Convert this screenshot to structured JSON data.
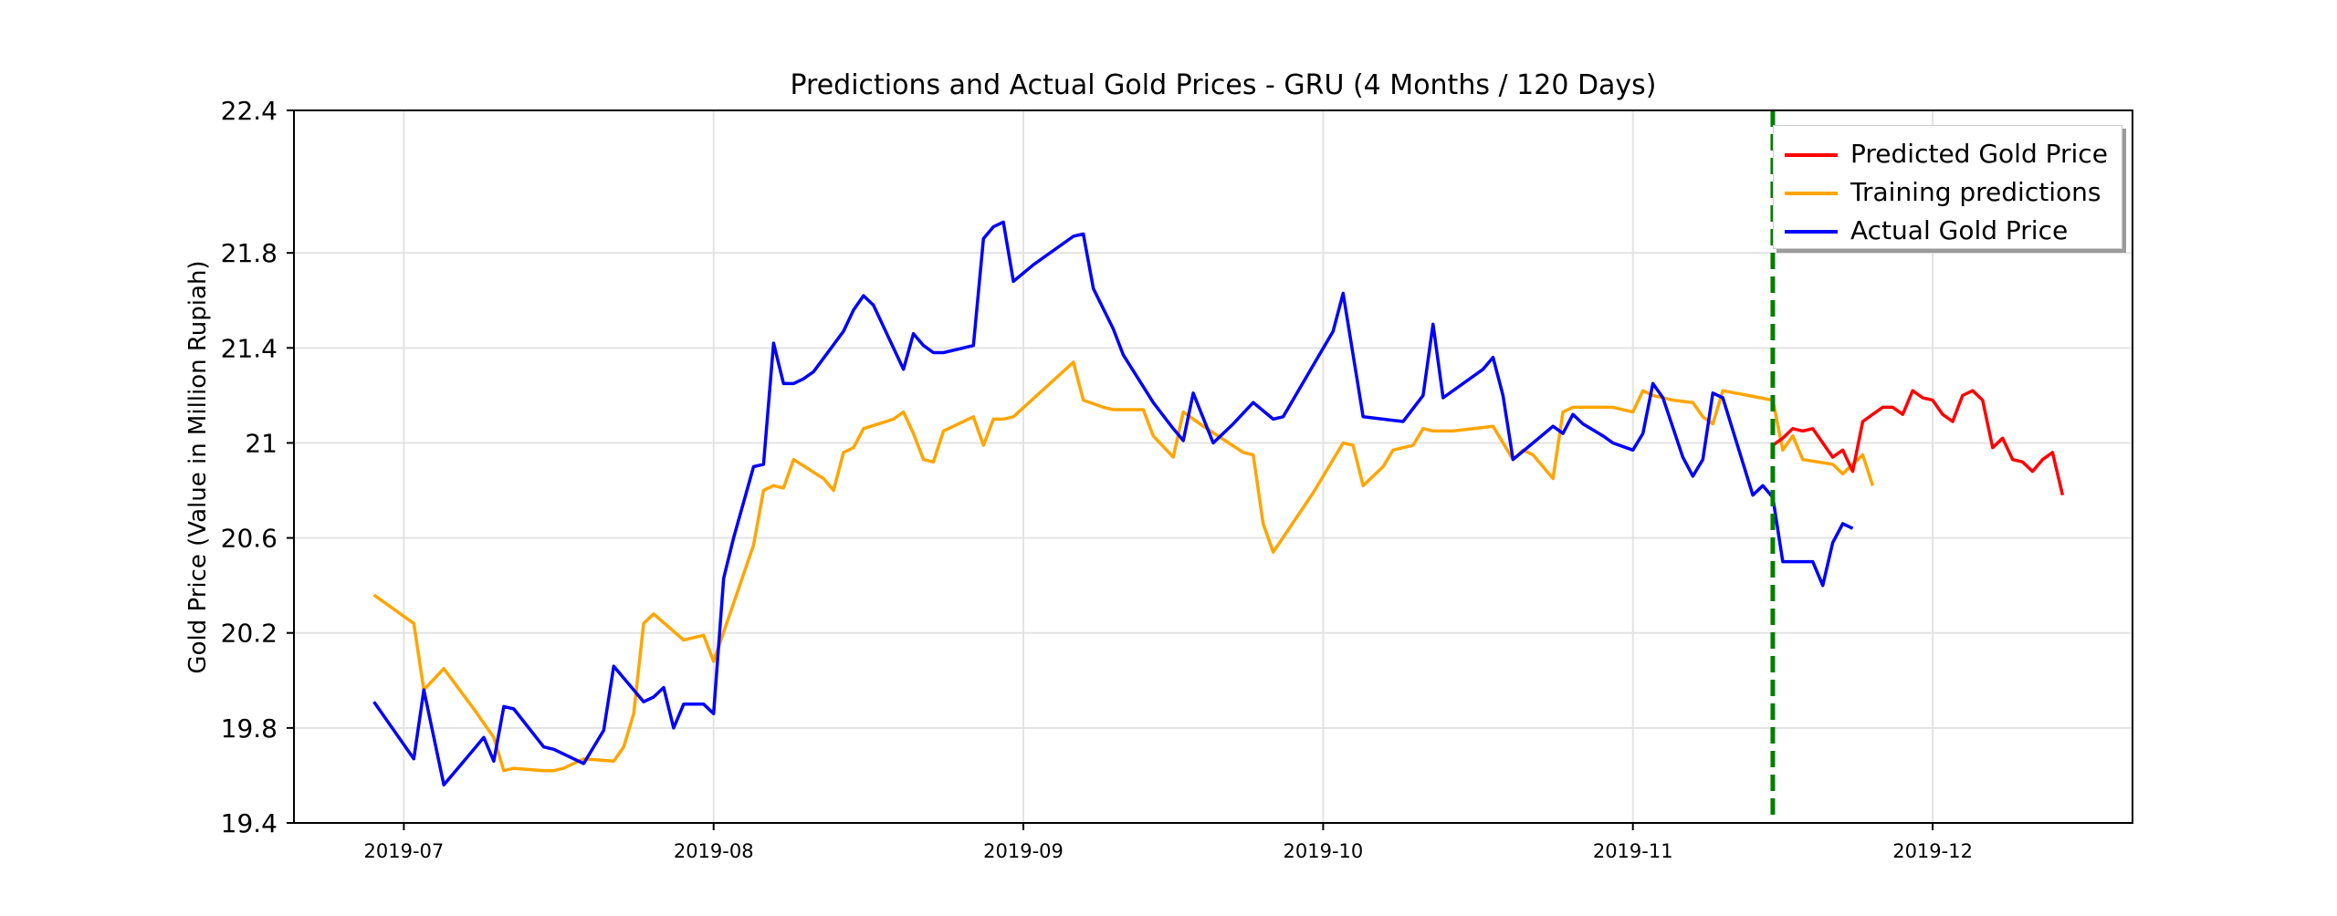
{
  "chart_data": {
    "type": "line",
    "title": "Predictions and Actual Gold Prices - GRU (4 Months / 120 Days)",
    "xlabel": "",
    "ylabel": "Gold Price (Value in Million Rupiah)",
    "ylim": [
      19.4,
      22.4
    ],
    "xlim": [
      "2019-06-20",
      "2019-12-21"
    ],
    "grid": true,
    "legend_position": "top-right",
    "x_ticks": [
      "2019-07",
      "2019-08",
      "2019-09",
      "2019-10",
      "2019-11",
      "2019-12"
    ],
    "x_tick_dates": [
      "2019-07-01",
      "2019-08-01",
      "2019-09-01",
      "2019-10-01",
      "2019-11-01",
      "2019-12-01"
    ],
    "y_ticks": [
      19.4,
      19.8,
      20.2,
      20.6,
      21,
      21.4,
      21.8,
      22.4
    ],
    "y_tick_labels": [
      "19.4",
      "19.8",
      "20.2",
      "20.6",
      "21",
      "21.4",
      "21.8",
      "22.4"
    ],
    "vertical_line": {
      "x": "2019-11-15",
      "color": "#008000",
      "style": "dashed"
    },
    "series": [
      {
        "name": "Predicted Gold Price",
        "color": "#ff0000",
        "points": [
          [
            "2019-11-15",
            20.99
          ],
          [
            "2019-11-16",
            21.02
          ],
          [
            "2019-11-17",
            21.06
          ],
          [
            "2019-11-18",
            21.05
          ],
          [
            "2019-11-19",
            21.06
          ],
          [
            "2019-11-20",
            21.0
          ],
          [
            "2019-11-21",
            20.94
          ],
          [
            "2019-11-22",
            20.97
          ],
          [
            "2019-11-23",
            20.88
          ],
          [
            "2019-11-24",
            21.09
          ],
          [
            "2019-11-25",
            21.12
          ],
          [
            "2019-11-26",
            21.15
          ],
          [
            "2019-11-27",
            21.15
          ],
          [
            "2019-11-28",
            21.12
          ],
          [
            "2019-11-29",
            21.22
          ],
          [
            "2019-11-30",
            21.19
          ],
          [
            "2019-12-01",
            21.18
          ],
          [
            "2019-12-02",
            21.12
          ],
          [
            "2019-12-03",
            21.09
          ],
          [
            "2019-12-04",
            21.2
          ],
          [
            "2019-12-05",
            21.22
          ],
          [
            "2019-12-06",
            21.18
          ],
          [
            "2019-12-07",
            20.98
          ],
          [
            "2019-12-08",
            21.02
          ],
          [
            "2019-12-09",
            20.93
          ],
          [
            "2019-12-10",
            20.92
          ],
          [
            "2019-12-11",
            20.88
          ],
          [
            "2019-12-12",
            20.93
          ],
          [
            "2019-12-13",
            20.96
          ],
          [
            "2019-12-14",
            20.78
          ]
        ]
      },
      {
        "name": "Training predictions",
        "color": "#ffa500",
        "points": [
          [
            "2019-06-28",
            20.36
          ],
          [
            "2019-07-02",
            20.24
          ],
          [
            "2019-07-03",
            19.96
          ],
          [
            "2019-07-05",
            20.05
          ],
          [
            "2019-07-08",
            19.88
          ],
          [
            "2019-07-10",
            19.76
          ],
          [
            "2019-07-11",
            19.62
          ],
          [
            "2019-07-12",
            19.63
          ],
          [
            "2019-07-15",
            19.62
          ],
          [
            "2019-07-16",
            19.62
          ],
          [
            "2019-07-17",
            19.63
          ],
          [
            "2019-07-19",
            19.67
          ],
          [
            "2019-07-22",
            19.66
          ],
          [
            "2019-07-23",
            19.72
          ],
          [
            "2019-07-24",
            19.86
          ],
          [
            "2019-07-25",
            20.24
          ],
          [
            "2019-07-26",
            20.28
          ],
          [
            "2019-07-29",
            20.17
          ],
          [
            "2019-07-31",
            20.19
          ],
          [
            "2019-08-01",
            20.08
          ],
          [
            "2019-08-05",
            20.57
          ],
          [
            "2019-08-06",
            20.8
          ],
          [
            "2019-08-07",
            20.82
          ],
          [
            "2019-08-08",
            20.81
          ],
          [
            "2019-08-09",
            20.93
          ],
          [
            "2019-08-12",
            20.85
          ],
          [
            "2019-08-13",
            20.8
          ],
          [
            "2019-08-14",
            20.96
          ],
          [
            "2019-08-15",
            20.98
          ],
          [
            "2019-08-16",
            21.06
          ],
          [
            "2019-08-19",
            21.1
          ],
          [
            "2019-08-20",
            21.13
          ],
          [
            "2019-08-21",
            21.04
          ],
          [
            "2019-08-22",
            20.93
          ],
          [
            "2019-08-23",
            20.92
          ],
          [
            "2019-08-24",
            21.05
          ],
          [
            "2019-08-27",
            21.11
          ],
          [
            "2019-08-28",
            20.99
          ],
          [
            "2019-08-29",
            21.1
          ],
          [
            "2019-08-30",
            21.1
          ],
          [
            "2019-08-31",
            21.11
          ],
          [
            "2019-09-06",
            21.34
          ],
          [
            "2019-09-07",
            21.18
          ],
          [
            "2019-09-09",
            21.15
          ],
          [
            "2019-09-10",
            21.14
          ],
          [
            "2019-09-11",
            21.14
          ],
          [
            "2019-09-13",
            21.14
          ],
          [
            "2019-09-14",
            21.03
          ],
          [
            "2019-09-16",
            20.94
          ],
          [
            "2019-09-17",
            21.13
          ],
          [
            "2019-09-19",
            21.07
          ],
          [
            "2019-09-23",
            20.96
          ],
          [
            "2019-09-24",
            20.95
          ],
          [
            "2019-09-25",
            20.66
          ],
          [
            "2019-09-26",
            20.54
          ],
          [
            "2019-09-30",
            20.79
          ],
          [
            "2019-10-03",
            21.0
          ],
          [
            "2019-10-04",
            20.99
          ],
          [
            "2019-10-05",
            20.82
          ],
          [
            "2019-10-07",
            20.9
          ],
          [
            "2019-10-08",
            20.97
          ],
          [
            "2019-10-10",
            20.99
          ],
          [
            "2019-10-11",
            21.06
          ],
          [
            "2019-10-12",
            21.05
          ],
          [
            "2019-10-14",
            21.05
          ],
          [
            "2019-10-18",
            21.07
          ],
          [
            "2019-10-20",
            20.93
          ],
          [
            "2019-10-21",
            20.97
          ],
          [
            "2019-10-22",
            20.95
          ],
          [
            "2019-10-24",
            20.85
          ],
          [
            "2019-10-25",
            21.13
          ],
          [
            "2019-10-26",
            21.15
          ],
          [
            "2019-10-29",
            21.15
          ],
          [
            "2019-10-30",
            21.15
          ],
          [
            "2019-11-01",
            21.13
          ],
          [
            "2019-11-02",
            21.22
          ],
          [
            "2019-11-03",
            21.2
          ],
          [
            "2019-11-05",
            21.18
          ],
          [
            "2019-11-07",
            21.17
          ],
          [
            "2019-11-08",
            21.11
          ],
          [
            "2019-11-09",
            21.08
          ],
          [
            "2019-11-10",
            21.22
          ],
          [
            "2019-11-15",
            21.18
          ],
          [
            "2019-11-16",
            20.97
          ],
          [
            "2019-11-17",
            21.03
          ],
          [
            "2019-11-18",
            20.93
          ],
          [
            "2019-11-21",
            20.91
          ],
          [
            "2019-11-22",
            20.87
          ],
          [
            "2019-11-23",
            20.91
          ],
          [
            "2019-11-24",
            20.95
          ],
          [
            "2019-11-25",
            20.82
          ]
        ]
      },
      {
        "name": "Actual Gold Price",
        "color": "#0000ff",
        "points": [
          [
            "2019-06-28",
            19.91
          ],
          [
            "2019-07-02",
            19.67
          ],
          [
            "2019-07-03",
            19.96
          ],
          [
            "2019-07-05",
            19.56
          ],
          [
            "2019-07-09",
            19.76
          ],
          [
            "2019-07-10",
            19.66
          ],
          [
            "2019-07-11",
            19.89
          ],
          [
            "2019-07-12",
            19.88
          ],
          [
            "2019-07-15",
            19.72
          ],
          [
            "2019-07-16",
            19.71
          ],
          [
            "2019-07-19",
            19.65
          ],
          [
            "2019-07-21",
            19.79
          ],
          [
            "2019-07-22",
            20.06
          ],
          [
            "2019-07-25",
            19.91
          ],
          [
            "2019-07-26",
            19.93
          ],
          [
            "2019-07-27",
            19.97
          ],
          [
            "2019-07-28",
            19.8
          ],
          [
            "2019-07-29",
            19.9
          ],
          [
            "2019-07-30",
            19.9
          ],
          [
            "2019-07-31",
            19.9
          ],
          [
            "2019-08-01",
            19.86
          ],
          [
            "2019-08-02",
            20.43
          ],
          [
            "2019-08-03",
            20.6
          ],
          [
            "2019-08-05",
            20.9
          ],
          [
            "2019-08-06",
            20.91
          ],
          [
            "2019-08-07",
            21.42
          ],
          [
            "2019-08-08",
            21.25
          ],
          [
            "2019-08-09",
            21.25
          ],
          [
            "2019-08-10",
            21.27
          ],
          [
            "2019-08-11",
            21.3
          ],
          [
            "2019-08-14",
            21.47
          ],
          [
            "2019-08-15",
            21.56
          ],
          [
            "2019-08-16",
            21.62
          ],
          [
            "2019-08-17",
            21.58
          ],
          [
            "2019-08-20",
            21.31
          ],
          [
            "2019-08-21",
            21.46
          ],
          [
            "2019-08-22",
            21.41
          ],
          [
            "2019-08-23",
            21.38
          ],
          [
            "2019-08-24",
            21.38
          ],
          [
            "2019-08-27",
            21.41
          ],
          [
            "2019-08-28",
            21.86
          ],
          [
            "2019-08-29",
            21.91
          ],
          [
            "2019-08-30",
            21.93
          ],
          [
            "2019-08-31",
            21.68
          ],
          [
            "2019-09-02",
            21.75
          ],
          [
            "2019-09-06",
            21.87
          ],
          [
            "2019-09-07",
            21.88
          ],
          [
            "2019-09-08",
            21.65
          ],
          [
            "2019-09-10",
            21.48
          ],
          [
            "2019-09-11",
            21.37
          ],
          [
            "2019-09-14",
            21.17
          ],
          [
            "2019-09-16",
            21.06
          ],
          [
            "2019-09-17",
            21.01
          ],
          [
            "2019-09-18",
            21.21
          ],
          [
            "2019-09-20",
            21.0
          ],
          [
            "2019-09-22",
            21.08
          ],
          [
            "2019-09-24",
            21.17
          ],
          [
            "2019-09-26",
            21.1
          ],
          [
            "2019-09-27",
            21.11
          ],
          [
            "2019-10-02",
            21.47
          ],
          [
            "2019-10-03",
            21.63
          ],
          [
            "2019-10-05",
            21.11
          ],
          [
            "2019-10-09",
            21.09
          ],
          [
            "2019-10-11",
            21.2
          ],
          [
            "2019-10-12",
            21.5
          ],
          [
            "2019-10-13",
            21.19
          ],
          [
            "2019-10-17",
            21.31
          ],
          [
            "2019-10-18",
            21.36
          ],
          [
            "2019-10-19",
            21.2
          ],
          [
            "2019-10-20",
            20.93
          ],
          [
            "2019-10-22",
            21.0
          ],
          [
            "2019-10-24",
            21.07
          ],
          [
            "2019-10-25",
            21.04
          ],
          [
            "2019-10-26",
            21.12
          ],
          [
            "2019-10-27",
            21.08
          ],
          [
            "2019-10-29",
            21.03
          ],
          [
            "2019-10-30",
            21.0
          ],
          [
            "2019-11-01",
            20.97
          ],
          [
            "2019-11-02",
            21.04
          ],
          [
            "2019-11-03",
            21.25
          ],
          [
            "2019-11-04",
            21.19
          ],
          [
            "2019-11-06",
            20.94
          ],
          [
            "2019-11-07",
            20.86
          ],
          [
            "2019-11-08",
            20.93
          ],
          [
            "2019-11-09",
            21.21
          ],
          [
            "2019-11-10",
            21.19
          ],
          [
            "2019-11-13",
            20.78
          ],
          [
            "2019-11-14",
            20.82
          ],
          [
            "2019-11-15",
            20.77
          ],
          [
            "2019-11-16",
            20.5
          ],
          [
            "2019-11-19",
            20.5
          ],
          [
            "2019-11-20",
            20.4
          ],
          [
            "2019-11-21",
            20.58
          ],
          [
            "2019-11-22",
            20.66
          ],
          [
            "2019-11-23",
            20.64
          ]
        ]
      }
    ]
  }
}
